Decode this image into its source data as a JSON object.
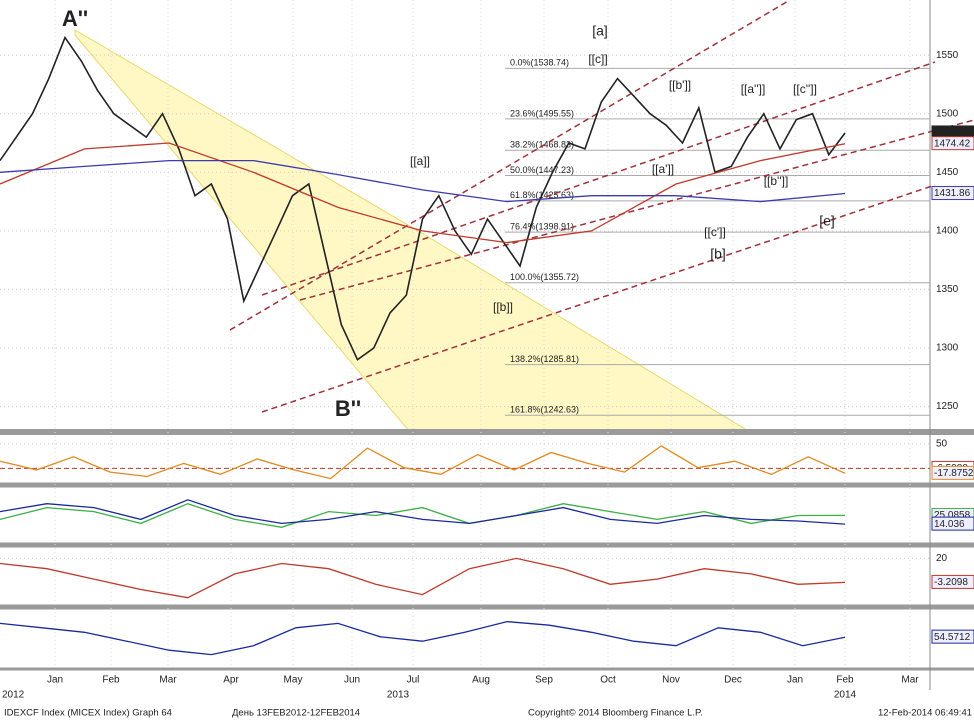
{
  "chart_data": [
    {
      "type": "line",
      "ylim": [
        1230,
        1580
      ],
      "yticks": [
        1250,
        1300,
        1350,
        1400,
        1450,
        1500,
        1550
      ],
      "xticks": [
        "Jan",
        "Feb",
        "Mar",
        "Apr",
        "May",
        "Jun",
        "Jul",
        "Aug",
        "Sep",
        "Oct",
        "Nov",
        "Dec",
        "Jan",
        "Feb",
        "Mar"
      ],
      "years": [
        "2012",
        "2013",
        "2014"
      ],
      "series": [
        {
          "color": "#222222",
          "values": [
            1460,
            1480,
            1500,
            1530,
            1565,
            1545,
            1520,
            1500,
            1490,
            1480,
            1500,
            1470,
            1430,
            1440,
            1410,
            1340,
            1370,
            1400,
            1430,
            1440,
            1380,
            1320,
            1290,
            1300,
            1330,
            1345,
            1410,
            1430,
            1400,
            1380,
            1410,
            1390,
            1370,
            1420,
            1450,
            1475,
            1470,
            1510,
            1530,
            1515,
            1500,
            1490,
            1475,
            1505,
            1450,
            1455,
            1480,
            1500,
            1470,
            1495,
            1500,
            1465,
            1483.57
          ]
        },
        {
          "color": "#c0392b",
          "values": [
            1440,
            1470,
            1475,
            1450,
            1420,
            1400,
            1390,
            1400,
            1440,
            1460,
            1474.42
          ]
        },
        {
          "color": "#3b3bb0",
          "values": [
            1450,
            1455,
            1460,
            1460,
            1448,
            1435,
            1425,
            1430,
            1430,
            1425,
            1431.86
          ]
        }
      ],
      "fib": [
        {
          "value": 1538.74,
          "label": "0.0%(1538.74)"
        },
        {
          "value": 1495.55,
          "label": "23.6%(1495.55)"
        },
        {
          "value": 1468.83,
          "label": "38.2%(1468.83)"
        },
        {
          "value": 1447.23,
          "label": "50.0%(1447.23)"
        },
        {
          "value": 1425.63,
          "label": "61.8%(1425.63)"
        },
        {
          "value": 1398.91,
          "label": "76.4%(1398.91)"
        },
        {
          "value": 1355.72,
          "label": "100.0%(1355.72)"
        },
        {
          "value": 1285.81,
          "label": "138.2%(1285.81)"
        },
        {
          "value": 1242.63,
          "label": "161.8%(1242.63)"
        }
      ],
      "annotations": [
        "A''",
        "B''",
        "[a]",
        "[b]",
        "[e]",
        "[[a]]",
        "[[b]]",
        "[[c]]",
        "[[a']]",
        "[[b']]",
        "[[c']]",
        "[[a'']]",
        "[[b'']]",
        "[[c'']]"
      ]
    },
    {
      "type": "line",
      "ylim": [
        -40,
        70
      ],
      "yticks": [
        50
      ],
      "hline": -6.5988,
      "series": [
        {
          "color": "#e08a1e",
          "values": [
            10,
            -10,
            20,
            -15,
            -25,
            5,
            -20,
            15,
            -10,
            -30,
            40,
            -5,
            -20,
            25,
            -10,
            30,
            5,
            -15,
            45,
            -5,
            10,
            -20,
            20,
            -17.8752
          ]
        }
      ]
    },
    {
      "type": "line",
      "ylim": [
        -10,
        60
      ],
      "series": [
        {
          "color": "#3cb043",
          "values": [
            20,
            35,
            30,
            15,
            40,
            20,
            10,
            30,
            25,
            35,
            15,
            25,
            40,
            30,
            20,
            30,
            15,
            25,
            25.0858
          ]
        },
        {
          "color": "#1a2a9c",
          "values": [
            30,
            40,
            35,
            20,
            45,
            25,
            15,
            20,
            30,
            20,
            15,
            25,
            35,
            20,
            15,
            25,
            20,
            18,
            14.036
          ]
        }
      ]
    },
    {
      "type": "line",
      "ylim": [
        -25,
        30
      ],
      "yticks": [
        20
      ],
      "series": [
        {
          "color": "#c0392b",
          "values": [
            15,
            10,
            0,
            -10,
            -18,
            5,
            15,
            10,
            -5,
            -15,
            10,
            20,
            10,
            -5,
            0,
            10,
            5,
            -5,
            -3.2098
          ]
        }
      ]
    },
    {
      "type": "line",
      "ylim": [
        20,
        85
      ],
      "series": [
        {
          "color": "#1a2a9c",
          "values": [
            70,
            65,
            60,
            50,
            40,
            35,
            45,
            65,
            70,
            55,
            50,
            60,
            72,
            68,
            60,
            50,
            45,
            65,
            60,
            45,
            54.5712
          ]
        }
      ]
    }
  ],
  "footer": [
    "IDEXCF Index (MICEX Index) Graph 64",
    "День 13FEB2012-12FEB2014",
    "Copyright© 2014 Bloomberg Finance L.P.",
    "12-Feb-2014 06:49:41"
  ]
}
